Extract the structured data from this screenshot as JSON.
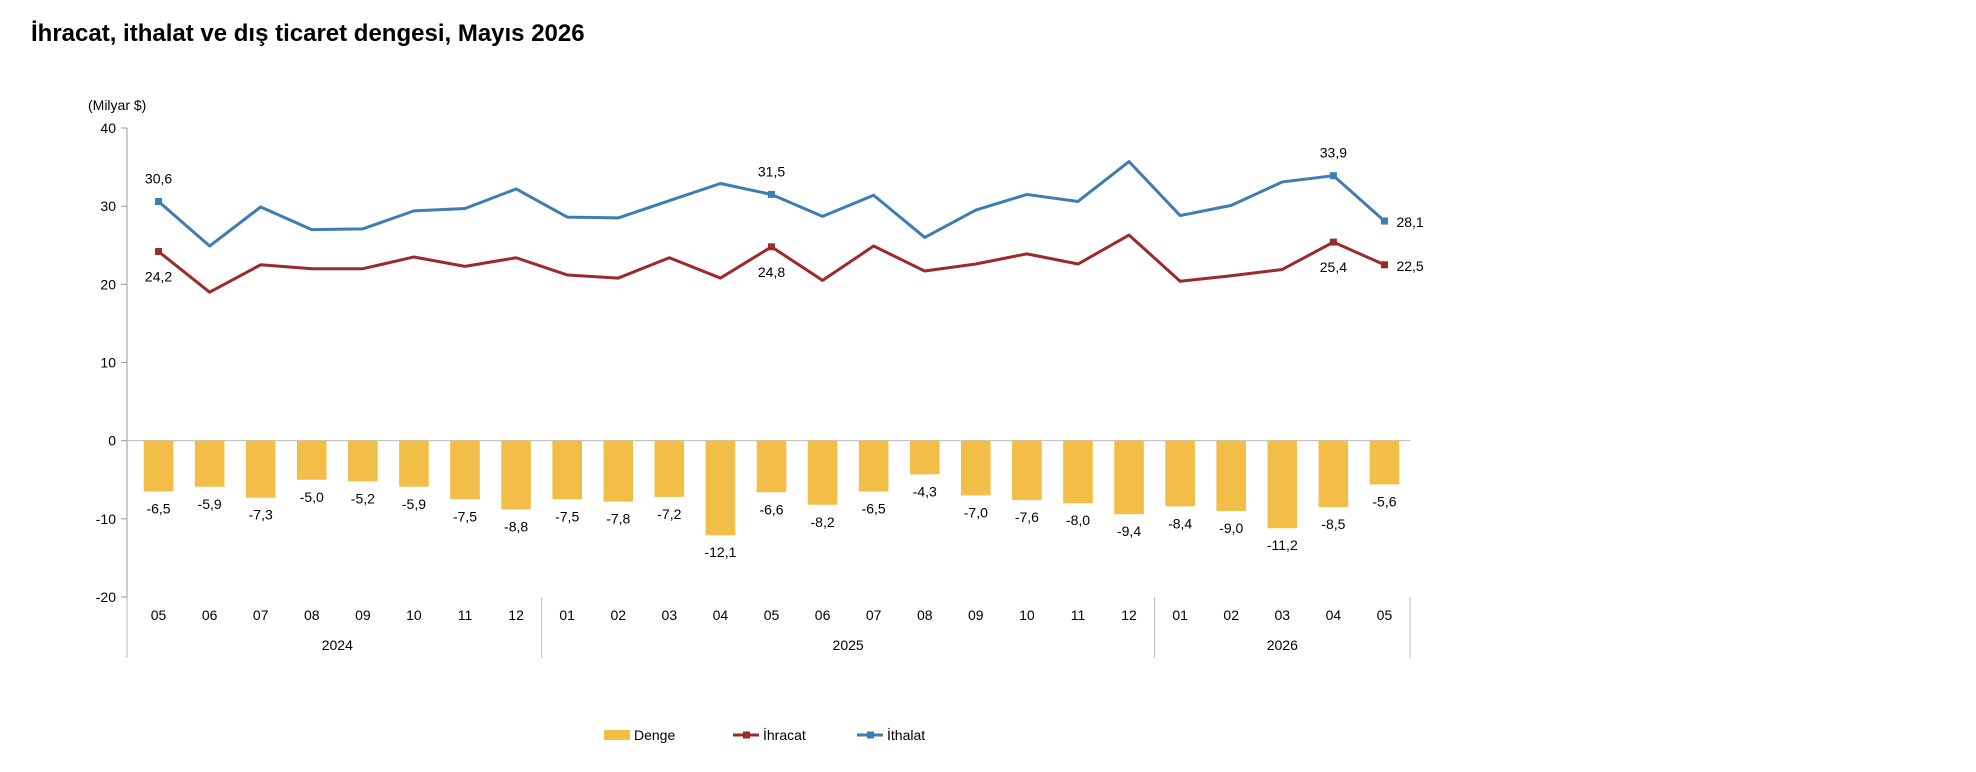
{
  "page": {
    "title": "İhracat, ithalat ve dış ticaret dengesi, Mayıs 2026"
  },
  "chart_data": {
    "type": "bar",
    "unit_label": "(Milyar $)",
    "ylim": [
      -20,
      40
    ],
    "yticks": [
      40,
      30,
      20,
      10,
      0,
      -10,
      -20
    ],
    "categories": [
      "05",
      "06",
      "07",
      "08",
      "09",
      "10",
      "11",
      "12",
      "01",
      "02",
      "03",
      "04",
      "05",
      "06",
      "07",
      "08",
      "09",
      "10",
      "11",
      "12",
      "01",
      "02",
      "03",
      "04",
      "05"
    ],
    "year_groups": [
      {
        "label": "2024",
        "start": 0,
        "end": 7
      },
      {
        "label": "2025",
        "start": 8,
        "end": 19
      },
      {
        "label": "2026",
        "start": 20,
        "end": 24
      }
    ],
    "grid": false,
    "legend_position": "bottom",
    "series": [
      {
        "name": "Denge",
        "kind": "bar",
        "color": "#F2BE47",
        "values": [
          -6.5,
          -5.9,
          -7.3,
          -5.0,
          -5.2,
          -5.9,
          -7.5,
          -8.8,
          -7.5,
          -7.8,
          -7.2,
          -12.1,
          -6.6,
          -8.2,
          -6.5,
          -4.3,
          -7.0,
          -7.6,
          -8.0,
          -9.4,
          -8.4,
          -9.0,
          -11.2,
          -8.5,
          -5.6
        ],
        "labels": [
          "-6,5",
          "-5,9",
          "-7,3",
          "-5,0",
          "-5,2",
          "-5,9",
          "-7,5",
          "-8,8",
          "-7,5",
          "-7,8",
          "-7,2",
          "-12,1",
          "-6,6",
          "-8,2",
          "-6,5",
          "-4,3",
          "-7,0",
          "-7,6",
          "-8,0",
          "-9,4",
          "-8,4",
          "-9,0",
          "-11,2",
          "-8,5",
          "-5,6"
        ]
      },
      {
        "name": "İhracat",
        "kind": "line",
        "color": "#9B2B2B",
        "values": [
          24.2,
          19.0,
          22.5,
          22.0,
          22.0,
          23.5,
          22.3,
          23.4,
          21.2,
          20.8,
          23.4,
          20.8,
          24.8,
          20.5,
          24.9,
          21.7,
          22.6,
          23.9,
          22.6,
          26.3,
          20.4,
          21.1,
          21.9,
          25.4,
          22.5
        ],
        "annotations": [
          {
            "index": 0,
            "label": "24,2",
            "pos": "below"
          },
          {
            "index": 12,
            "label": "24,8",
            "pos": "below"
          },
          {
            "index": 23,
            "label": "25,4",
            "pos": "below"
          },
          {
            "index": 24,
            "label": "22,5",
            "pos": "right"
          }
        ]
      },
      {
        "name": "İthalat",
        "kind": "line",
        "color": "#3E7CB1",
        "values": [
          30.6,
          24.9,
          29.9,
          27.0,
          27.1,
          29.4,
          29.7,
          32.2,
          28.6,
          28.5,
          30.7,
          32.9,
          31.5,
          28.7,
          31.4,
          26.0,
          29.5,
          31.5,
          30.6,
          35.7,
          28.8,
          30.1,
          33.1,
          33.9,
          28.1
        ],
        "annotations": [
          {
            "index": 0,
            "label": "30,6",
            "pos": "above"
          },
          {
            "index": 12,
            "label": "31,5",
            "pos": "above"
          },
          {
            "index": 23,
            "label": "33,9",
            "pos": "above"
          },
          {
            "index": 24,
            "label": "28,1",
            "pos": "right"
          }
        ]
      }
    ]
  }
}
